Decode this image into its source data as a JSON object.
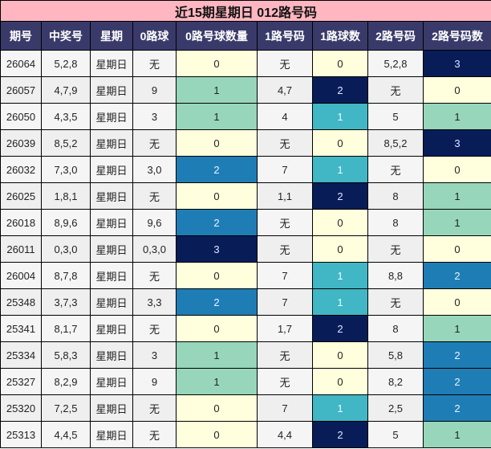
{
  "title": "近15期星期日 012路号码",
  "headers": [
    "期号",
    "中奖号",
    "星期",
    "0路球",
    "0路号球数量",
    "1路号码",
    "1路球数",
    "2路号码",
    "2路号码数"
  ],
  "colors": {
    "title_bg": "#ffb6c1",
    "header_bg": "#3a3a6a",
    "count_0": "#ffffdd",
    "count_1_zero_col": "#97d6bb",
    "count_2": "#1f7db5",
    "count_3": "#081d58",
    "count_1_one_col": "#41b6c4"
  },
  "rows": [
    {
      "issue": "26064",
      "numbers": "5,2,8",
      "weekday": "星期日",
      "r0": "无",
      "r0_count": "0",
      "r1": "无",
      "r1_count": "0",
      "r2": "5,2,8",
      "r2_count": "3"
    },
    {
      "issue": "26057",
      "numbers": "4,7,9",
      "weekday": "星期日",
      "r0": "9",
      "r0_count": "1",
      "r1": "4,7",
      "r1_count": "2",
      "r2": "无",
      "r2_count": "0"
    },
    {
      "issue": "26050",
      "numbers": "4,3,5",
      "weekday": "星期日",
      "r0": "3",
      "r0_count": "1",
      "r1": "4",
      "r1_count": "1",
      "r2": "5",
      "r2_count": "1"
    },
    {
      "issue": "26039",
      "numbers": "8,5,2",
      "weekday": "星期日",
      "r0": "无",
      "r0_count": "0",
      "r1": "无",
      "r1_count": "0",
      "r2": "8,5,2",
      "r2_count": "3"
    },
    {
      "issue": "26032",
      "numbers": "7,3,0",
      "weekday": "星期日",
      "r0": "3,0",
      "r0_count": "2",
      "r1": "7",
      "r1_count": "1",
      "r2": "无",
      "r2_count": "0"
    },
    {
      "issue": "26025",
      "numbers": "1,8,1",
      "weekday": "星期日",
      "r0": "无",
      "r0_count": "0",
      "r1": "1,1",
      "r1_count": "2",
      "r2": "8",
      "r2_count": "1"
    },
    {
      "issue": "26018",
      "numbers": "8,9,6",
      "weekday": "星期日",
      "r0": "9,6",
      "r0_count": "2",
      "r1": "无",
      "r1_count": "0",
      "r2": "8",
      "r2_count": "1"
    },
    {
      "issue": "26011",
      "numbers": "0,3,0",
      "weekday": "星期日",
      "r0": "0,3,0",
      "r0_count": "3",
      "r1": "无",
      "r1_count": "0",
      "r2": "无",
      "r2_count": "0"
    },
    {
      "issue": "26004",
      "numbers": "8,7,8",
      "weekday": "星期日",
      "r0": "无",
      "r0_count": "0",
      "r1": "7",
      "r1_count": "1",
      "r2": "8,8",
      "r2_count": "2"
    },
    {
      "issue": "25348",
      "numbers": "3,7,3",
      "weekday": "星期日",
      "r0": "3,3",
      "r0_count": "2",
      "r1": "7",
      "r1_count": "1",
      "r2": "无",
      "r2_count": "0"
    },
    {
      "issue": "25341",
      "numbers": "8,1,7",
      "weekday": "星期日",
      "r0": "无",
      "r0_count": "0",
      "r1": "1,7",
      "r1_count": "2",
      "r2": "8",
      "r2_count": "1"
    },
    {
      "issue": "25334",
      "numbers": "5,8,3",
      "weekday": "星期日",
      "r0": "3",
      "r0_count": "1",
      "r1": "无",
      "r1_count": "0",
      "r2": "5,8",
      "r2_count": "2"
    },
    {
      "issue": "25327",
      "numbers": "8,2,9",
      "weekday": "星期日",
      "r0": "9",
      "r0_count": "1",
      "r1": "无",
      "r1_count": "0",
      "r2": "8,2",
      "r2_count": "2"
    },
    {
      "issue": "25320",
      "numbers": "7,2,5",
      "weekday": "星期日",
      "r0": "无",
      "r0_count": "0",
      "r1": "7",
      "r1_count": "1",
      "r2": "2,5",
      "r2_count": "2"
    },
    {
      "issue": "25313",
      "numbers": "4,4,5",
      "weekday": "星期日",
      "r0": "无",
      "r0_count": "0",
      "r1": "4,4",
      "r1_count": "2",
      "r2": "5",
      "r2_count": "1"
    }
  ]
}
